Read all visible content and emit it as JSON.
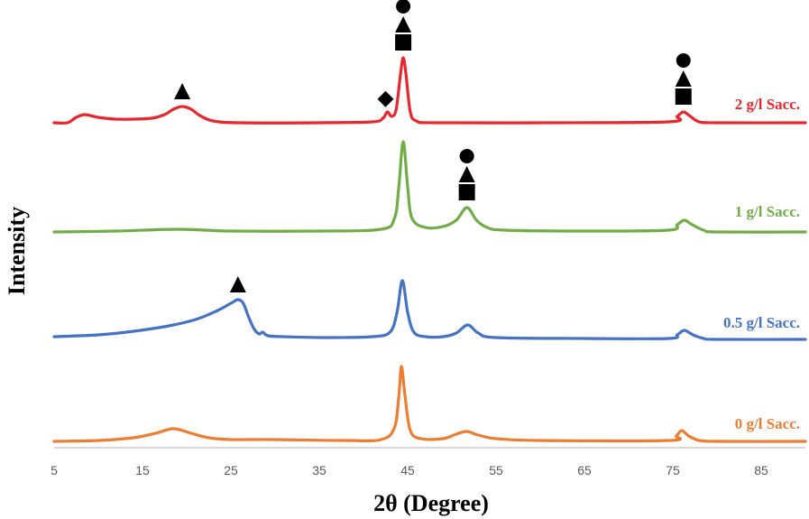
{
  "chart_data": {
    "type": "line",
    "xlabel": "2θ (Degree)",
    "ylabel": "Intensity",
    "xlim": [
      5,
      90
    ],
    "x_ticks": [
      5,
      15,
      25,
      35,
      45,
      55,
      65,
      75,
      85
    ],
    "legend": "inline-right",
    "grid": false,
    "series": [
      {
        "name": "2 g/l Sacc.",
        "color": "#e8262d",
        "points": [
          [
            5,
            0
          ],
          [
            6.5,
            0
          ],
          [
            7.5,
            0.06
          ],
          [
            8.5,
            0.09
          ],
          [
            10,
            0.06
          ],
          [
            12,
            0.04
          ],
          [
            14,
            0.04
          ],
          [
            16,
            0.05
          ],
          [
            17.5,
            0.09
          ],
          [
            18.5,
            0.15
          ],
          [
            19.5,
            0.18
          ],
          [
            20.5,
            0.15
          ],
          [
            21.5,
            0.08
          ],
          [
            23,
            0.02
          ],
          [
            26,
            0
          ],
          [
            35,
            0
          ],
          [
            41,
            0.01
          ],
          [
            42.2,
            0.05
          ],
          [
            42.7,
            0.12
          ],
          [
            43.2,
            0.07
          ],
          [
            43.7,
            0.15
          ],
          [
            44.2,
            0.55
          ],
          [
            44.5,
            0.72
          ],
          [
            44.8,
            0.55
          ],
          [
            45.3,
            0.12
          ],
          [
            46,
            0.02
          ],
          [
            48,
            0
          ],
          [
            60,
            0
          ],
          [
            74.5,
            0.01
          ],
          [
            75.5,
            0.07
          ],
          [
            76.2,
            0.12
          ],
          [
            77,
            0.07
          ],
          [
            78,
            0.01
          ],
          [
            80,
            0
          ],
          [
            90,
            0
          ]
        ]
      },
      {
        "name": "1 g/l Sacc.",
        "color": "#70ad47",
        "points": [
          [
            5,
            0
          ],
          [
            12,
            0.01
          ],
          [
            19,
            0.03
          ],
          [
            25,
            0.01
          ],
          [
            35,
            0.01
          ],
          [
            42,
            0.03
          ],
          [
            43.5,
            0.15
          ],
          [
            44,
            0.5
          ],
          [
            44.5,
            1.0
          ],
          [
            45,
            0.5
          ],
          [
            45.5,
            0.15
          ],
          [
            47,
            0.05
          ],
          [
            49,
            0.06
          ],
          [
            50.5,
            0.13
          ],
          [
            51.7,
            0.27
          ],
          [
            52.8,
            0.13
          ],
          [
            54,
            0.05
          ],
          [
            56,
            0.02
          ],
          [
            65,
            0.01
          ],
          [
            74.5,
            0.02
          ],
          [
            75.5,
            0.08
          ],
          [
            76.3,
            0.13
          ],
          [
            77.2,
            0.08
          ],
          [
            78.5,
            0.02
          ],
          [
            80,
            0
          ],
          [
            90,
            0
          ]
        ]
      },
      {
        "name": "0.5 g/l Sacc.",
        "color": "#4472c4",
        "points": [
          [
            5,
            0.03
          ],
          [
            10,
            0.05
          ],
          [
            14,
            0.09
          ],
          [
            18,
            0.15
          ],
          [
            21,
            0.22
          ],
          [
            23.5,
            0.32
          ],
          [
            25,
            0.4
          ],
          [
            25.8,
            0.44
          ],
          [
            26.4,
            0.4
          ],
          [
            27,
            0.25
          ],
          [
            27.6,
            0.12
          ],
          [
            28.2,
            0.06
          ],
          [
            28.6,
            0.08
          ],
          [
            29.2,
            0.04
          ],
          [
            31,
            0.03
          ],
          [
            36,
            0.02
          ],
          [
            41,
            0.03
          ],
          [
            43,
            0.08
          ],
          [
            43.8,
            0.3
          ],
          [
            44.4,
            0.65
          ],
          [
            45,
            0.3
          ],
          [
            45.7,
            0.08
          ],
          [
            47,
            0.03
          ],
          [
            49,
            0.03
          ],
          [
            50.5,
            0.07
          ],
          [
            51.8,
            0.16
          ],
          [
            53,
            0.07
          ],
          [
            55,
            0.02
          ],
          [
            65,
            0.01
          ],
          [
            74.5,
            0.01
          ],
          [
            75.5,
            0.05
          ],
          [
            76.3,
            0.1
          ],
          [
            77.3,
            0.05
          ],
          [
            78.5,
            0.01
          ],
          [
            80,
            0
          ],
          [
            90,
            0
          ]
        ]
      },
      {
        "name": "0 g/l Sacc.",
        "color": "#ed7d31",
        "points": [
          [
            5,
            0
          ],
          [
            10,
            0.01
          ],
          [
            14,
            0.04
          ],
          [
            16.5,
            0.09
          ],
          [
            18.5,
            0.14
          ],
          [
            20.5,
            0.09
          ],
          [
            22.5,
            0.04
          ],
          [
            25,
            0.02
          ],
          [
            30,
            0.02
          ],
          [
            38,
            0.01
          ],
          [
            42,
            0.02
          ],
          [
            43.5,
            0.15
          ],
          [
            44,
            0.5
          ],
          [
            44.3,
            0.83
          ],
          [
            44.7,
            0.5
          ],
          [
            45.3,
            0.12
          ],
          [
            46.5,
            0.03
          ],
          [
            49,
            0.03
          ],
          [
            50.5,
            0.08
          ],
          [
            51.7,
            0.11
          ],
          [
            53,
            0.07
          ],
          [
            55,
            0.03
          ],
          [
            60,
            0.01
          ],
          [
            74.5,
            0.01
          ],
          [
            75.4,
            0.06
          ],
          [
            76,
            0.12
          ],
          [
            76.8,
            0.06
          ],
          [
            78,
            0.01
          ],
          [
            80,
            0
          ],
          [
            90,
            0
          ]
        ]
      }
    ],
    "annotations": [
      {
        "series": "2 g/l Sacc.",
        "x": 19.5,
        "markers": [
          "triangle"
        ]
      },
      {
        "series": "2 g/l Sacc.",
        "x": 42.5,
        "markers": [
          "diamond"
        ]
      },
      {
        "series": "2 g/l Sacc.",
        "x": 44.5,
        "markers": [
          "square",
          "triangle",
          "circle"
        ]
      },
      {
        "series": "2 g/l Sacc.",
        "x": 76.2,
        "markers": [
          "square",
          "triangle",
          "circle"
        ]
      },
      {
        "series": "1 g/l Sacc.",
        "x": 51.7,
        "markers": [
          "square",
          "triangle",
          "circle"
        ]
      },
      {
        "series": "0.5 g/l Sacc.",
        "x": 25.8,
        "markers": [
          "triangle"
        ]
      }
    ]
  }
}
